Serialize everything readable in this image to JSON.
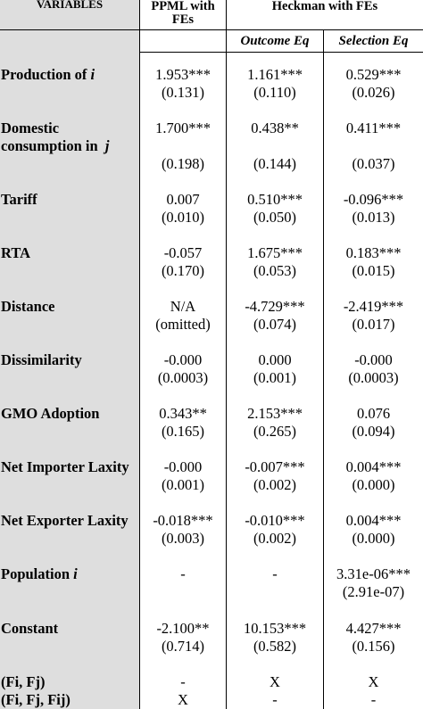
{
  "header": {
    "variables": "VARIABLES",
    "ppml_line1": "PPML with",
    "ppml_line2": "FEs",
    "heckman": "Heckman with FEs",
    "outcome": "Outcome Eq",
    "selection": "Selection Eq"
  },
  "rows": [
    {
      "label_html": "Production of <i>i</i>",
      "ppml": "1.953***",
      "ppml_se": "(0.131)",
      "out": "1.161***",
      "out_se": "(0.110)",
      "sel": "0.529***",
      "sel_se": "(0.026)"
    },
    {
      "label_line1": "Domestic",
      "label_line2_html": "consumption in &nbsp;<i>j</i>",
      "ppml": "1.700***",
      "ppml_se": "(0.198)",
      "out": "0.438**",
      "out_se": "(0.144)",
      "sel": "0.411***",
      "sel_se": "(0.037)"
    },
    {
      "label": "Tariff",
      "ppml": "0.007",
      "ppml_se": "(0.010)",
      "out": "0.510***",
      "out_se": "(0.050)",
      "sel": "-0.096***",
      "sel_se": "(0.013)"
    },
    {
      "label": "RTA",
      "ppml": "-0.057",
      "ppml_se": "(0.170)",
      "out": "1.675***",
      "out_se": "(0.053)",
      "sel": "0.183***",
      "sel_se": "(0.015)"
    },
    {
      "label": "Distance",
      "ppml": "N/A",
      "ppml_se": "(omitted)",
      "out": "-4.729***",
      "out_se": "(0.074)",
      "sel": "-2.419***",
      "sel_se": "(0.017)"
    },
    {
      "label": "Dissimilarity",
      "ppml": "-0.000",
      "ppml_se": "(0.0003)",
      "out": "0.000",
      "out_se": "(0.001)",
      "sel": "-0.000",
      "sel_se": "(0.0003)"
    },
    {
      "label": "GMO Adoption",
      "ppml": "0.343**",
      "ppml_se": "(0.165)",
      "out": "2.153***",
      "out_se": "(0.265)",
      "sel": "0.076",
      "sel_se": "(0.094)"
    },
    {
      "label": "Net Importer Laxity",
      "ppml": "-0.000",
      "ppml_se": "(0.001)",
      "out": "-0.007***",
      "out_se": "(0.002)",
      "sel": "0.004***",
      "sel_se": "(0.000)"
    },
    {
      "label": "Net Exporter Laxity",
      "ppml": "-0.018***",
      "ppml_se": "(0.003)",
      "out": "-0.010***",
      "out_se": "(0.002)",
      "sel": "0.004***",
      "sel_se": "(0.000)"
    },
    {
      "label_html": "Population <i>i</i>",
      "ppml": "-",
      "ppml_se": "",
      "out": "-",
      "out_se": "",
      "sel": "3.31e-06***",
      "sel_se": "(2.91e-07)"
    },
    {
      "label": "Constant",
      "ppml": "-2.100**",
      "ppml_se": "(0.714)",
      "out": "10.153***",
      "out_se": "(0.582)",
      "sel": "4.427***",
      "sel_se": "(0.156)"
    }
  ],
  "fe_rows": [
    {
      "label": "(Fi, Fj)",
      "ppml": "-",
      "out": "X",
      "sel": "X"
    },
    {
      "label": "(Fi, Fj, Fij)",
      "ppml": "X",
      "out": "-",
      "sel": "-"
    }
  ]
}
